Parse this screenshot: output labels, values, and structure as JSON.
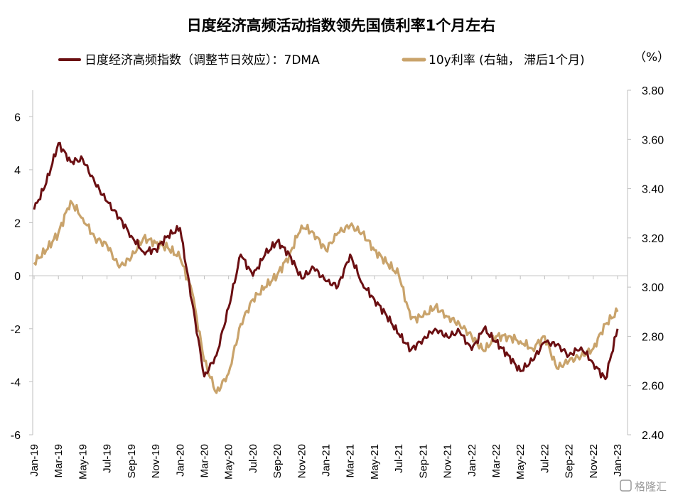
{
  "chart_data": {
    "type": "line",
    "title": "日度经济高频活动指数领先国债利率1个月左右",
    "unit_right": "（%）",
    "x_tick_labels": [
      "Jan-19",
      "Mar-19",
      "May-19",
      "Jul-19",
      "Sep-19",
      "Nov-19",
      "Jan-20",
      "Mar-20",
      "May-20",
      "Jul-20",
      "Sep-20",
      "Nov-20",
      "Jan-21",
      "Mar-21",
      "May-21",
      "Jul-21",
      "Sep-21",
      "Nov-21",
      "Jan-22",
      "Mar-22",
      "May-22",
      "Jul-22",
      "Sep-22",
      "Nov-22",
      "Jan-23"
    ],
    "left_axis": {
      "min": -6,
      "max": 7,
      "ticks": [
        "6",
        "4",
        "2",
        "0",
        "-2",
        "-4",
        "-6"
      ],
      "tick_values": [
        6,
        4,
        2,
        0,
        -2,
        -4,
        -6
      ]
    },
    "right_axis": {
      "min": 2.4,
      "max": 3.8,
      "ticks": [
        "3.80",
        "3.60",
        "3.40",
        "3.20",
        "3.00",
        "2.80",
        "2.60",
        "2.40"
      ],
      "tick_values": [
        3.8,
        3.6,
        3.4,
        3.2,
        3.0,
        2.8,
        2.6,
        2.4
      ]
    },
    "legend_position": "top",
    "series": [
      {
        "name": "日度经济高频指数（调整节日效应）：7DMA",
        "axis": "left",
        "color": "#6b0f12",
        "points": [
          [
            "Jan-19",
            2.5
          ],
          [
            "Feb-19",
            3.5
          ],
          [
            "Mar-19",
            5.0
          ],
          [
            "Apr-19",
            4.3
          ],
          [
            "May-19",
            4.4
          ],
          [
            "Jun-19",
            3.5
          ],
          [
            "Jul-19",
            2.8
          ],
          [
            "Aug-19",
            2.2
          ],
          [
            "Sep-19",
            1.5
          ],
          [
            "Oct-19",
            0.9
          ],
          [
            "Nov-19",
            1.0
          ],
          [
            "Dec-19",
            1.5
          ],
          [
            "Jan-20",
            1.8
          ],
          [
            "Feb-20",
            -1.0
          ],
          [
            "Mar-20",
            -3.8
          ],
          [
            "Apr-20",
            -3.0
          ],
          [
            "May-20",
            -1.2
          ],
          [
            "Jun-20",
            0.8
          ],
          [
            "Jul-20",
            0.0
          ],
          [
            "Aug-20",
            0.8
          ],
          [
            "Sep-20",
            1.3
          ],
          [
            "Oct-20",
            0.8
          ],
          [
            "Nov-20",
            -0.1
          ],
          [
            "Dec-20",
            0.3
          ],
          [
            "Jan-21",
            -0.2
          ],
          [
            "Feb-21",
            -0.4
          ],
          [
            "Mar-21",
            0.8
          ],
          [
            "Apr-21",
            -0.3
          ],
          [
            "May-21",
            -0.9
          ],
          [
            "Jun-21",
            -1.5
          ],
          [
            "Jul-21",
            -2.2
          ],
          [
            "Aug-21",
            -2.8
          ],
          [
            "Sep-21",
            -2.4
          ],
          [
            "Oct-21",
            -2.0
          ],
          [
            "Nov-21",
            -2.3
          ],
          [
            "Dec-21",
            -2.1
          ],
          [
            "Jan-22",
            -2.8
          ],
          [
            "Feb-22",
            -2.0
          ],
          [
            "Mar-22",
            -2.5
          ],
          [
            "Apr-22",
            -3.0
          ],
          [
            "May-22",
            -3.6
          ],
          [
            "Jun-22",
            -3.2
          ],
          [
            "Jul-22",
            -2.5
          ],
          [
            "Aug-22",
            -2.6
          ],
          [
            "Sep-22",
            -3.0
          ],
          [
            "Oct-22",
            -2.7
          ],
          [
            "Nov-22",
            -3.3
          ],
          [
            "Dec-22",
            -3.9
          ],
          [
            "Jan-23",
            -2.0
          ]
        ]
      },
      {
        "name": "10y利率 (右轴， 滞后1个月)",
        "axis": "right",
        "color": "#c9a36b",
        "points": [
          [
            "Jan-19",
            3.1
          ],
          [
            "Feb-19",
            3.15
          ],
          [
            "Mar-19",
            3.22
          ],
          [
            "Apr-19",
            3.35
          ],
          [
            "May-19",
            3.28
          ],
          [
            "Jun-19",
            3.2
          ],
          [
            "Jul-19",
            3.17
          ],
          [
            "Aug-19",
            3.08
          ],
          [
            "Sep-19",
            3.12
          ],
          [
            "Oct-19",
            3.2
          ],
          [
            "Nov-19",
            3.18
          ],
          [
            "Dec-19",
            3.16
          ],
          [
            "Jan-20",
            3.12
          ],
          [
            "Feb-20",
            2.98
          ],
          [
            "Mar-20",
            2.7
          ],
          [
            "Apr-20",
            2.57
          ],
          [
            "May-20",
            2.65
          ],
          [
            "Jun-20",
            2.85
          ],
          [
            "Jul-20",
            2.95
          ],
          [
            "Aug-20",
            3.0
          ],
          [
            "Sep-20",
            3.05
          ],
          [
            "Oct-20",
            3.13
          ],
          [
            "Nov-20",
            3.25
          ],
          [
            "Dec-20",
            3.22
          ],
          [
            "Jan-21",
            3.15
          ],
          [
            "Feb-21",
            3.22
          ],
          [
            "Mar-21",
            3.25
          ],
          [
            "Apr-21",
            3.22
          ],
          [
            "May-21",
            3.15
          ],
          [
            "Jun-21",
            3.1
          ],
          [
            "Jul-21",
            3.05
          ],
          [
            "Aug-21",
            2.87
          ],
          [
            "Sep-21",
            2.88
          ],
          [
            "Oct-21",
            2.92
          ],
          [
            "Nov-21",
            2.88
          ],
          [
            "Dec-21",
            2.85
          ],
          [
            "Jan-22",
            2.8
          ],
          [
            "Feb-22",
            2.74
          ],
          [
            "Mar-22",
            2.8
          ],
          [
            "Apr-22",
            2.8
          ],
          [
            "May-22",
            2.78
          ],
          [
            "Jun-22",
            2.75
          ],
          [
            "Jul-22",
            2.8
          ],
          [
            "Aug-22",
            2.67
          ],
          [
            "Sep-22",
            2.7
          ],
          [
            "Oct-22",
            2.72
          ],
          [
            "Nov-22",
            2.75
          ],
          [
            "Dec-22",
            2.85
          ],
          [
            "Jan-23",
            2.9
          ]
        ]
      }
    ]
  },
  "watermark": "格隆汇"
}
